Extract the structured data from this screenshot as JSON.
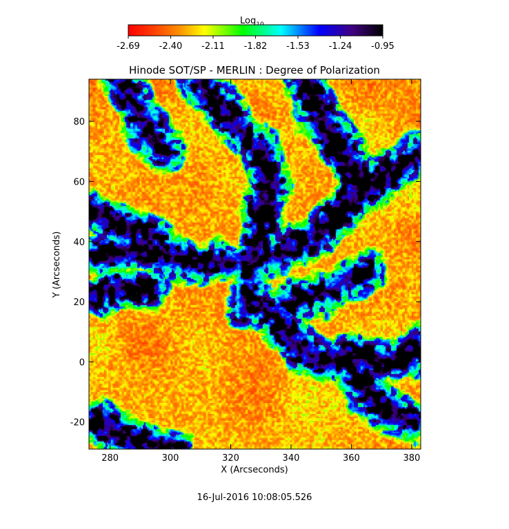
{
  "colorbar": {
    "label_main": "Log",
    "label_sub": "10",
    "ticks": [
      "-2.69",
      "-2.40",
      "-2.11",
      "-1.82",
      "-1.53",
      "-1.24",
      "-0.95"
    ],
    "colors": [
      "#ff0000",
      "#ff8000",
      "#ffff00",
      "#00ff00",
      "#00ffff",
      "#0000ff",
      "#400080",
      "#000000"
    ]
  },
  "chart_data": {
    "type": "heatmap",
    "title": "Hinode SOT/SP - MERLIN : Degree of Polarization",
    "xlabel": "X (Arcseconds)",
    "ylabel": "Y (Arcseconds)",
    "xlim": [
      273,
      383
    ],
    "ylim": [
      -29,
      94
    ],
    "xticks": [
      280,
      300,
      320,
      340,
      360,
      380
    ],
    "yticks": [
      -20,
      0,
      20,
      40,
      60,
      80
    ],
    "value_range": [
      -2.69,
      -0.95
    ],
    "value_scale": "log10",
    "timestamp": "16-Jul-2016 10:08:05.526"
  }
}
